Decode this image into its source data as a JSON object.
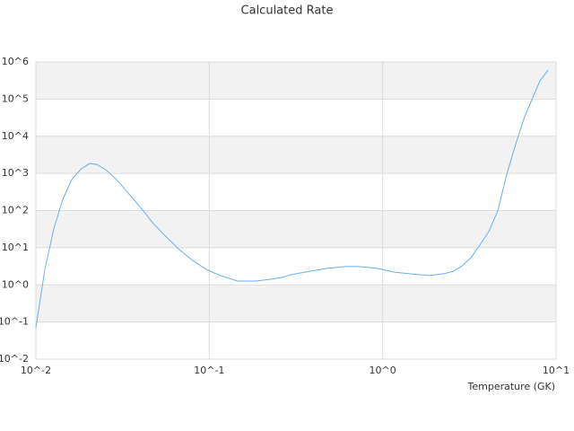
{
  "chart_data": {
    "type": "line",
    "title": "Calculated Rate",
    "x_label": "Temperature (GK)",
    "xlog": true,
    "ylog": true,
    "grid": true,
    "bands": true,
    "color": "#6aaee8",
    "x": [
      0.01,
      0.01127,
      0.01268,
      0.01429,
      0.0161,
      0.01816,
      0.0204,
      0.0225,
      0.0253,
      0.0292,
      0.0349,
      0.0418,
      0.0471,
      0.0562,
      0.0673,
      0.0804,
      0.0962,
      0.1148,
      0.146,
      0.185,
      0.221,
      0.264,
      0.298,
      0.378,
      0.48,
      0.61,
      0.728,
      0.925,
      1.17,
      1.58,
      1.89,
      2.26,
      2.55,
      2.86,
      3.23,
      3.64,
      4.09,
      4.61,
      5.2,
      5.86,
      6.59,
      8.07,
      8.99
    ],
    "values": [
      0.07,
      2.6,
      32,
      200,
      680,
      1300,
      1850,
      1750,
      1250,
      680,
      260,
      97,
      47,
      20,
      8.8,
      4.5,
      2.6,
      1.8,
      1.27,
      1.27,
      1.4,
      1.6,
      1.9,
      2.3,
      2.8,
      3.1,
      3.1,
      2.8,
      2.2,
      1.9,
      1.8,
      2.0,
      2.3,
      3.2,
      5.4,
      12,
      27,
      98,
      960,
      6300,
      34000,
      310000,
      600000
    ],
    "xlim": [
      0.01,
      10
    ],
    "ylim": [
      0.01,
      1000000
    ],
    "xticks": [
      {
        "value": 0.01,
        "label": "10^-2"
      },
      {
        "value": 0.1,
        "label": "10^-1"
      },
      {
        "value": 1,
        "label": "10^0"
      },
      {
        "value": 10,
        "label": "10^1"
      }
    ],
    "yticks": [
      {
        "value": 0.01,
        "label": "10^-2"
      },
      {
        "value": 0.1,
        "label": "10^-1"
      },
      {
        "value": 1,
        "label": "10^0"
      },
      {
        "value": 10,
        "label": "10^1"
      },
      {
        "value": 100,
        "label": "10^2"
      },
      {
        "value": 1000,
        "label": "10^3"
      },
      {
        "value": 10000,
        "label": "10^4"
      },
      {
        "value": 100000,
        "label": "10^5"
      },
      {
        "value": 1000000,
        "label": "10^6"
      }
    ]
  }
}
